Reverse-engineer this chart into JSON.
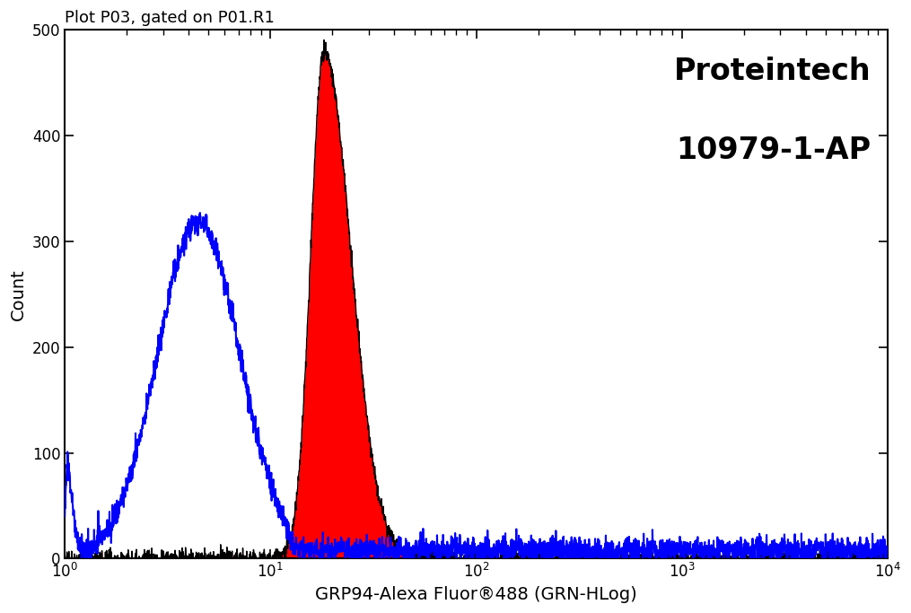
{
  "title": "Plot P03, gated on P01.R1",
  "xlabel": "GRP94-Alexa Fluor®488 (GRN-HLog)",
  "ylabel": "Count",
  "xscale": "log",
  "xlim": [
    1,
    10000
  ],
  "ylim": [
    0,
    500
  ],
  "yticks": [
    0,
    100,
    200,
    300,
    400,
    500
  ],
  "annotation_line1": "Proteintech",
  "annotation_line2": "10979-1-AP",
  "bg_color": "#ffffff",
  "blue_color": "#0000ff",
  "red_fill_color": "#ff0000",
  "black_outline_color": "#000000",
  "blue_peak_log_x": 0.65,
  "blue_peak_y": 320,
  "blue_sigma": 0.2,
  "blue_left_spike_y": 100,
  "red_peak_log_x": 1.26,
  "red_peak_y": 480,
  "red_sigma_narrow": 0.065,
  "red_sigma_wide": 0.13,
  "n_points": 3000
}
